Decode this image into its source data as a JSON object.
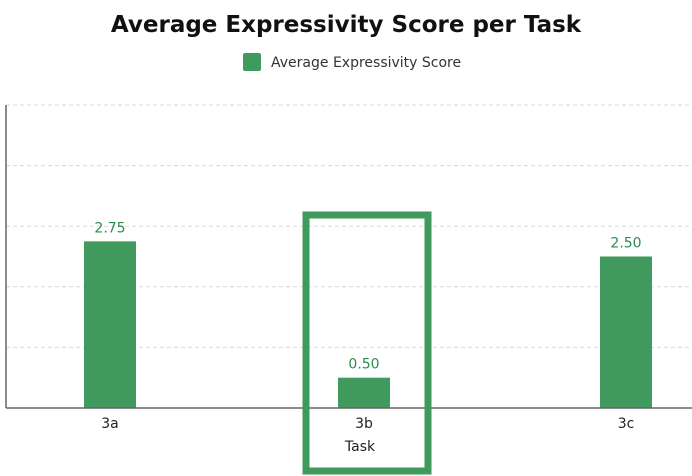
{
  "chart_data": {
    "type": "bar",
    "title": "Average Expressivity Score per Task",
    "xlabel": "Task",
    "ylabel": "",
    "categories": [
      "3a",
      "3b",
      "3c"
    ],
    "series": [
      {
        "name": "Average Expressivity Score",
        "values": [
          2.75,
          0.5,
          2.5
        ]
      }
    ],
    "data_labels": [
      "2.75",
      "0.50",
      "2.50"
    ],
    "ylim": [
      0,
      5
    ],
    "grid": true,
    "legend_position": "top-center",
    "highlighted_category": "3b",
    "colors": {
      "bar": "#409a5e",
      "highlight": "#409a5e",
      "label": "#2e8b4c"
    }
  }
}
